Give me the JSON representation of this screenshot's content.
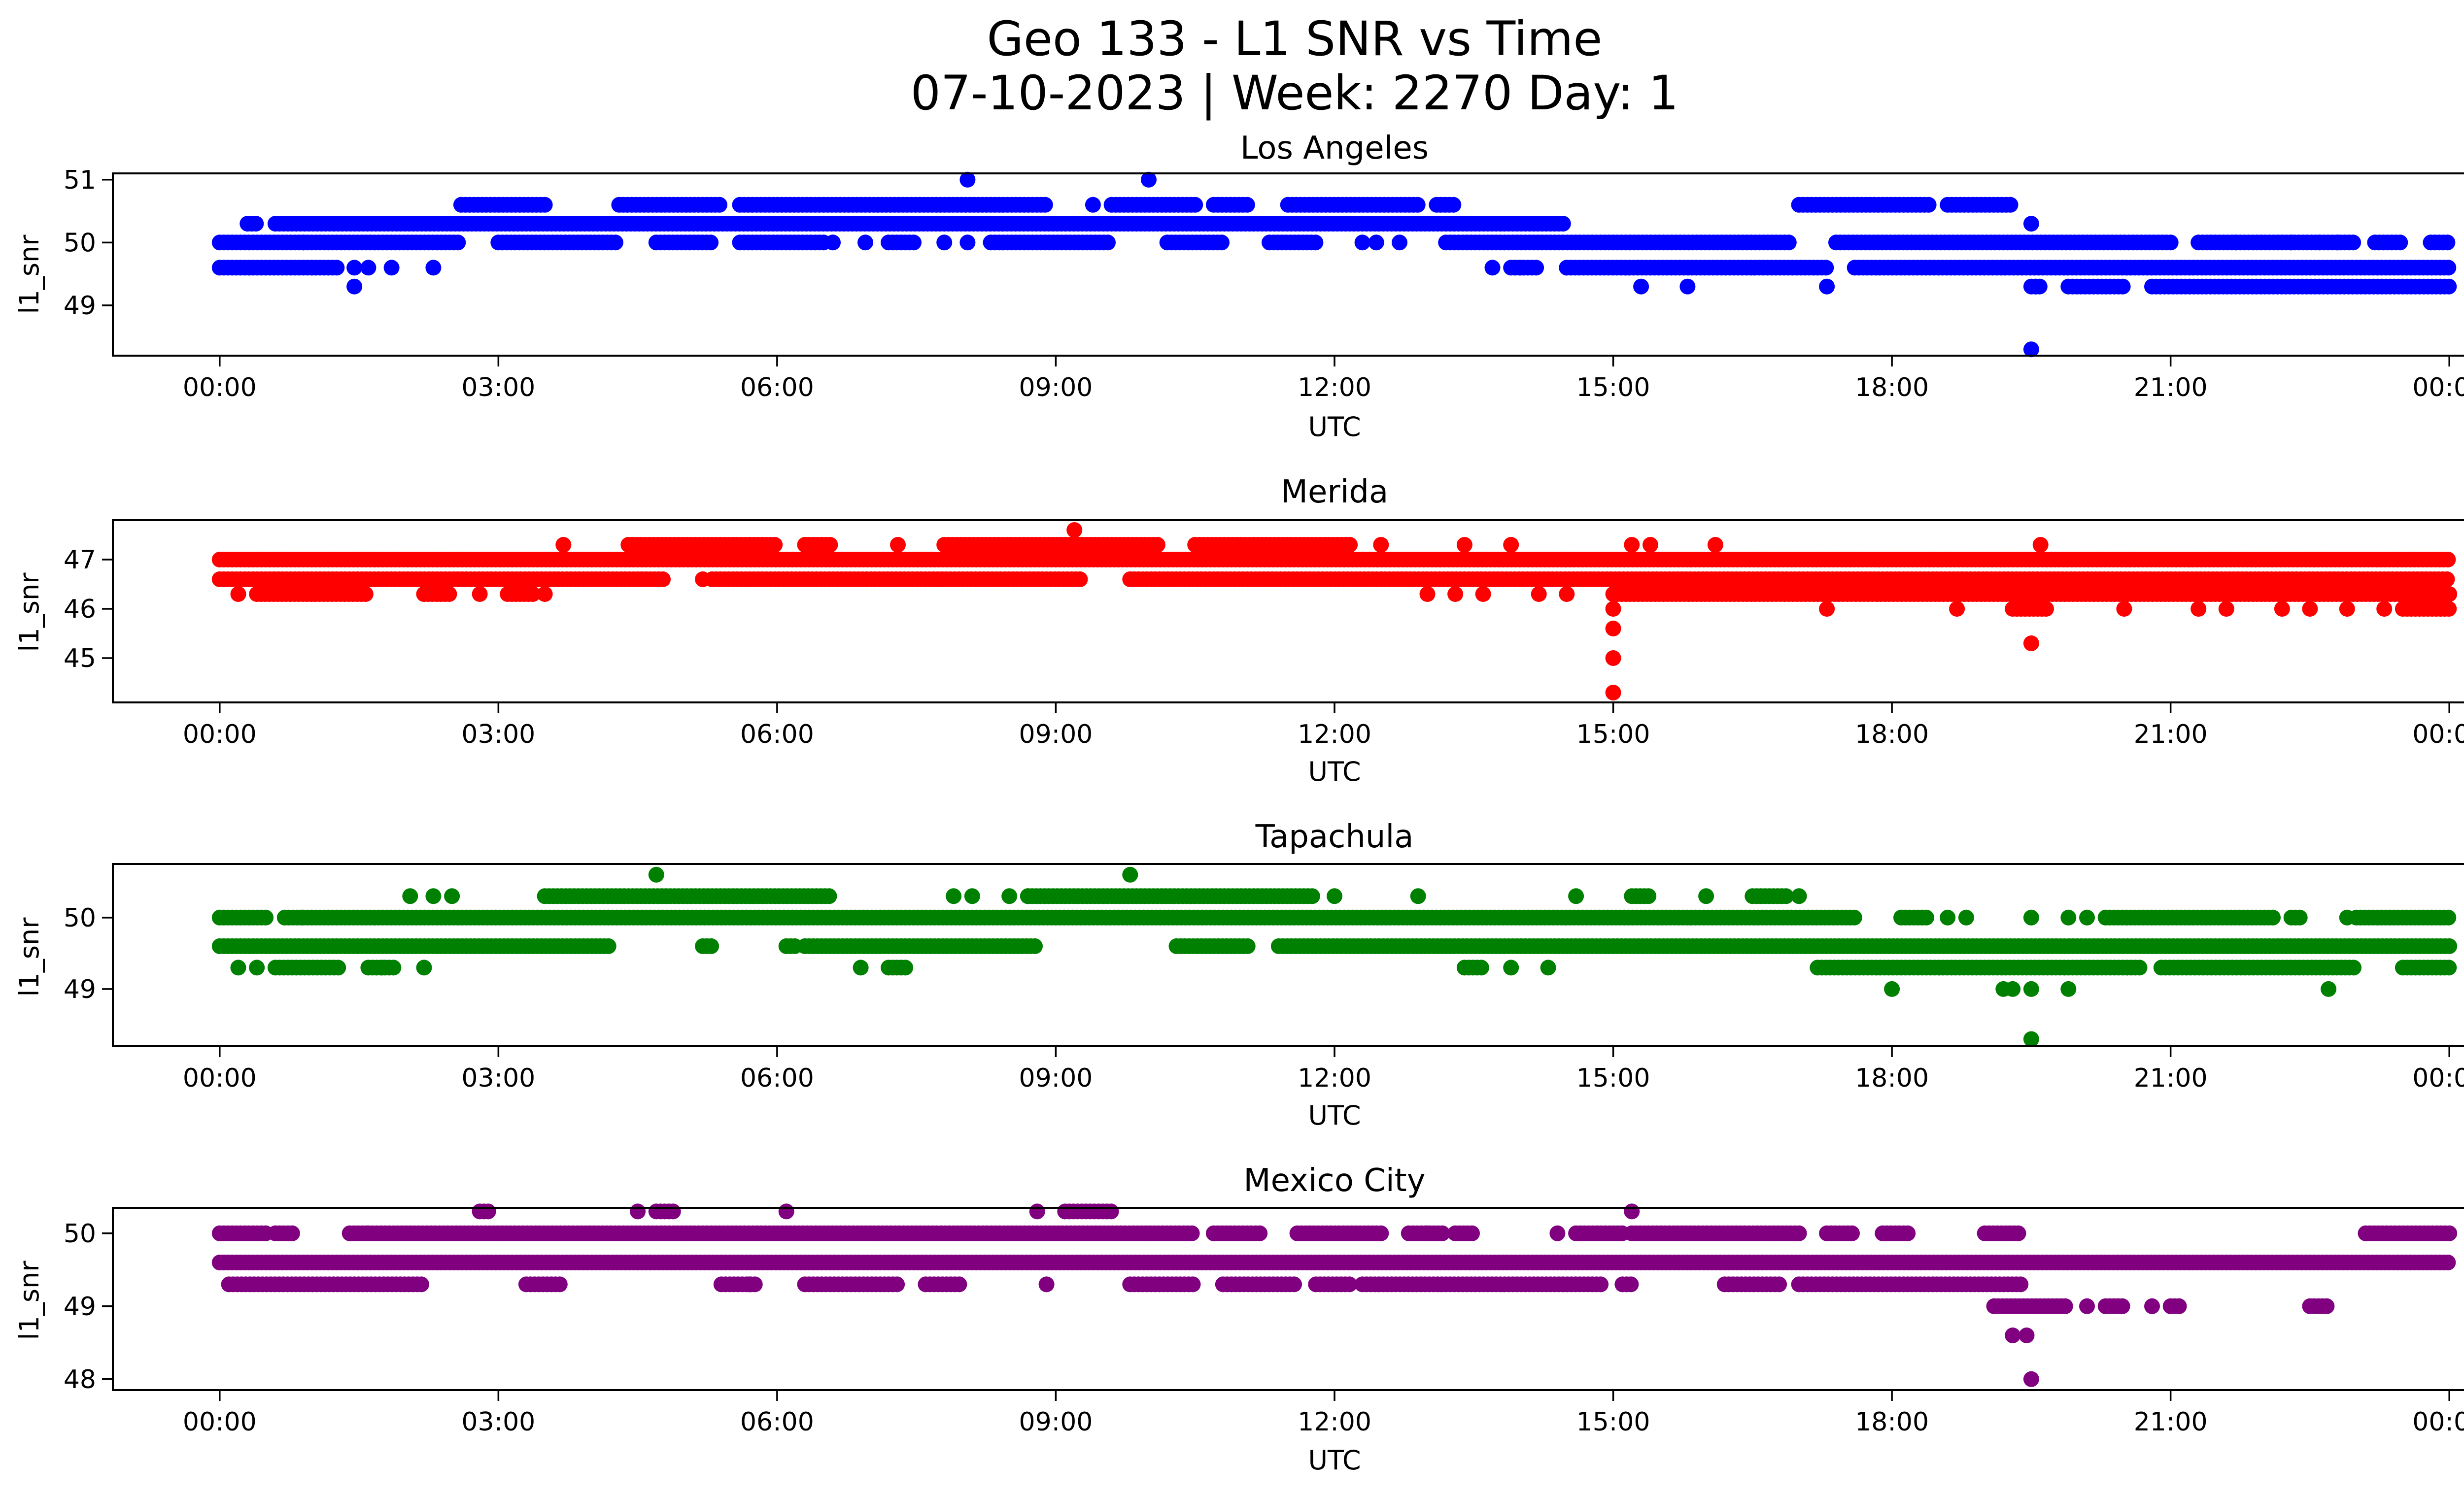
{
  "figure": {
    "title_line1": "Geo 133 - L1 SNR vs Time",
    "title_line2": "07-10-2023 | Week: 2270 Day: 1"
  },
  "chart_data": [
    {
      "type": "scatter",
      "title": "Los Angeles",
      "xlabel": "UTC",
      "ylabel": "l1_snr",
      "color": "#0000ff",
      "xlim_hours": [
        -1.15,
        25.15
      ],
      "ylim": [
        48.2,
        51.1
      ],
      "x_ticks": [
        "00:00",
        "03:00",
        "06:00",
        "09:00",
        "12:00",
        "15:00",
        "18:00",
        "21:00",
        "00:00"
      ],
      "y_ticks": [
        49,
        50,
        51
      ],
      "segments": [
        {
          "y": 50.0,
          "ranges": [
            [
              0.0,
              0.9
            ],
            [
              0.9,
              2.6
            ],
            [
              3.0,
              4.3
            ],
            [
              4.7,
              5.3
            ],
            [
              5.6,
              6.5
            ],
            [
              7.2,
              7.5
            ],
            [
              8.3,
              9.6
            ],
            [
              10.2,
              10.8
            ],
            [
              11.3,
              11.8
            ],
            [
              13.2,
              16.9
            ],
            [
              17.4,
              21.0
            ],
            [
              21.3,
              23.0
            ],
            [
              23.2,
              23.5
            ],
            [
              23.8,
              24.0
            ]
          ]
        },
        {
          "y": 49.6,
          "ranges": [
            [
              0.0,
              1.3
            ],
            [
              13.9,
              14.2
            ],
            [
              14.5,
              17.3
            ],
            [
              17.6,
              24.0
            ]
          ]
        },
        {
          "y": 50.3,
          "ranges": [
            [
              0.3,
              0.4
            ],
            [
              0.6,
              14.5
            ]
          ]
        },
        {
          "y": 50.6,
          "ranges": [
            [
              2.6,
              3.5
            ],
            [
              4.3,
              5.4
            ],
            [
              5.6,
              8.9
            ],
            [
              9.6,
              10.5
            ],
            [
              10.7,
              11.1
            ],
            [
              11.5,
              12.9
            ],
            [
              13.1,
              13.3
            ],
            [
              17.0,
              18.4
            ],
            [
              18.6,
              19.3
            ]
          ]
        },
        {
          "y": 49.3,
          "ranges": [
            [
              19.5,
              19.6
            ],
            [
              19.9,
              20.5
            ],
            [
              20.8,
              24.0
            ]
          ]
        }
      ],
      "points": [
        {
          "x": 1.45,
          "y": 49.3
        },
        {
          "x": 1.45,
          "y": 49.6
        },
        {
          "x": 1.6,
          "y": 49.6
        },
        {
          "x": 1.85,
          "y": 49.6
        },
        {
          "x": 2.3,
          "y": 49.6
        },
        {
          "x": 8.05,
          "y": 51.0
        },
        {
          "x": 10.0,
          "y": 51.0
        },
        {
          "x": 9.4,
          "y": 50.6
        },
        {
          "x": 6.6,
          "y": 50.0
        },
        {
          "x": 6.95,
          "y": 50.0
        },
        {
          "x": 7.8,
          "y": 50.0
        },
        {
          "x": 8.05,
          "y": 50.0
        },
        {
          "x": 12.3,
          "y": 50.0
        },
        {
          "x": 12.45,
          "y": 50.0
        },
        {
          "x": 12.7,
          "y": 50.0
        },
        {
          "x": 13.7,
          "y": 49.6
        },
        {
          "x": 14.0,
          "y": 49.6
        },
        {
          "x": 15.3,
          "y": 49.3
        },
        {
          "x": 15.8,
          "y": 49.3
        },
        {
          "x": 17.3,
          "y": 49.3
        },
        {
          "x": 19.5,
          "y": 50.3
        },
        {
          "x": 19.5,
          "y": 48.3
        },
        {
          "x": 19.55,
          "y": 49.3
        },
        {
          "x": 21.7,
          "y": 50.0
        },
        {
          "x": 22.3,
          "y": 50.0
        },
        {
          "x": 22.6,
          "y": 50.0
        },
        {
          "x": 22.8,
          "y": 50.0
        }
      ]
    },
    {
      "type": "scatter",
      "title": "Merida",
      "xlabel": "UTC",
      "ylabel": "l1_snr",
      "color": "#ff0000",
      "xlim_hours": [
        -1.15,
        25.15
      ],
      "ylim": [
        44.1,
        47.8
      ],
      "x_ticks": [
        "00:00",
        "03:00",
        "06:00",
        "09:00",
        "12:00",
        "15:00",
        "18:00",
        "21:00",
        "00:00"
      ],
      "y_ticks": [
        45,
        46,
        47
      ],
      "segments": [
        {
          "y": 47.0,
          "ranges": [
            [
              0.0,
              24.0
            ]
          ]
        },
        {
          "y": 46.6,
          "ranges": [
            [
              0.0,
              4.8
            ],
            [
              5.3,
              9.3
            ],
            [
              9.8,
              24.0
            ]
          ]
        },
        {
          "y": 46.3,
          "ranges": [
            [
              0.4,
              1.6
            ],
            [
              2.2,
              2.5
            ],
            [
              3.1,
              3.4
            ],
            [
              15.0,
              24.0
            ]
          ]
        },
        {
          "y": 47.3,
          "ranges": [
            [
              4.4,
              6.0
            ],
            [
              6.3,
              6.6
            ],
            [
              7.8,
              10.1
            ],
            [
              10.5,
              12.2
            ]
          ]
        },
        {
          "y": 46.0,
          "ranges": [
            [
              19.3,
              19.7
            ],
            [
              23.5,
              24.0
            ]
          ]
        }
      ],
      "points": [
        {
          "x": 0.2,
          "y": 46.3
        },
        {
          "x": 2.2,
          "y": 46.3
        },
        {
          "x": 2.8,
          "y": 46.3
        },
        {
          "x": 3.5,
          "y": 46.3
        },
        {
          "x": 3.7,
          "y": 47.3
        },
        {
          "x": 5.2,
          "y": 46.6
        },
        {
          "x": 7.3,
          "y": 47.3
        },
        {
          "x": 9.2,
          "y": 47.6
        },
        {
          "x": 12.5,
          "y": 47.3
        },
        {
          "x": 13.0,
          "y": 46.3
        },
        {
          "x": 13.3,
          "y": 46.3
        },
        {
          "x": 13.6,
          "y": 46.3
        },
        {
          "x": 13.4,
          "y": 47.3
        },
        {
          "x": 13.9,
          "y": 47.3
        },
        {
          "x": 14.2,
          "y": 46.3
        },
        {
          "x": 14.5,
          "y": 46.3
        },
        {
          "x": 15.0,
          "y": 46.0
        },
        {
          "x": 15.0,
          "y": 45.6
        },
        {
          "x": 15.0,
          "y": 45.0
        },
        {
          "x": 15.0,
          "y": 44.3
        },
        {
          "x": 15.2,
          "y": 47.3
        },
        {
          "x": 15.4,
          "y": 47.3
        },
        {
          "x": 16.1,
          "y": 47.3
        },
        {
          "x": 17.3,
          "y": 46.0
        },
        {
          "x": 18.7,
          "y": 46.0
        },
        {
          "x": 19.5,
          "y": 45.3
        },
        {
          "x": 19.6,
          "y": 47.3
        },
        {
          "x": 20.5,
          "y": 46.0
        },
        {
          "x": 21.3,
          "y": 46.0
        },
        {
          "x": 21.6,
          "y": 46.0
        },
        {
          "x": 22.2,
          "y": 46.0
        },
        {
          "x": 22.5,
          "y": 46.0
        },
        {
          "x": 22.9,
          "y": 46.0
        },
        {
          "x": 23.3,
          "y": 46.0
        }
      ]
    },
    {
      "type": "scatter",
      "title": "Tapachula",
      "xlabel": "UTC",
      "ylabel": "l1_snr",
      "color": "#008000",
      "xlim_hours": [
        -1.15,
        25.15
      ],
      "ylim": [
        48.2,
        50.75
      ],
      "x_ticks": [
        "00:00",
        "03:00",
        "06:00",
        "09:00",
        "12:00",
        "15:00",
        "18:00",
        "21:00",
        "00:00"
      ],
      "y_ticks": [
        49,
        50
      ],
      "segments": [
        {
          "y": 50.0,
          "ranges": [
            [
              0.0,
              0.5
            ],
            [
              0.7,
              0.9
            ],
            [
              0.9,
              17.6
            ],
            [
              18.1,
              18.4
            ],
            [
              20.3,
              22.1
            ],
            [
              22.3,
              22.4
            ],
            [
              23.0,
              24.0
            ]
          ]
        },
        {
          "y": 49.6,
          "ranges": [
            [
              0.0,
              4.2
            ],
            [
              5.2,
              5.3
            ],
            [
              6.1,
              6.2
            ],
            [
              6.3,
              8.8
            ],
            [
              10.3,
              11.1
            ],
            [
              11.4,
              24.0
            ]
          ]
        },
        {
          "y": 49.3,
          "ranges": [
            [
              0.6,
              1.3
            ],
            [
              1.6,
              1.9
            ],
            [
              7.2,
              7.4
            ],
            [
              13.4,
              13.6
            ],
            [
              17.2,
              20.7
            ],
            [
              20.9,
              23.0
            ],
            [
              23.5,
              24.0
            ]
          ]
        },
        {
          "y": 50.3,
          "ranges": [
            [
              3.5,
              6.6
            ],
            [
              8.7,
              11.8
            ],
            [
              16.5,
              16.9
            ],
            [
              15.2,
              15.4
            ]
          ]
        }
      ],
      "points": [
        {
          "x": 0.2,
          "y": 49.3
        },
        {
          "x": 0.4,
          "y": 49.3
        },
        {
          "x": 2.05,
          "y": 50.3
        },
        {
          "x": 2.3,
          "y": 50.3
        },
        {
          "x": 2.5,
          "y": 50.3
        },
        {
          "x": 1.75,
          "y": 49.3
        },
        {
          "x": 2.2,
          "y": 49.3
        },
        {
          "x": 4.7,
          "y": 50.6
        },
        {
          "x": 6.9,
          "y": 49.3
        },
        {
          "x": 7.9,
          "y": 50.3
        },
        {
          "x": 8.1,
          "y": 50.3
        },
        {
          "x": 8.5,
          "y": 50.3
        },
        {
          "x": 8.7,
          "y": 50.3
        },
        {
          "x": 9.8,
          "y": 50.6
        },
        {
          "x": 12.0,
          "y": 50.3
        },
        {
          "x": 12.9,
          "y": 50.3
        },
        {
          "x": 13.9,
          "y": 49.3
        },
        {
          "x": 14.3,
          "y": 49.3
        },
        {
          "x": 14.6,
          "y": 50.3
        },
        {
          "x": 16.0,
          "y": 50.3
        },
        {
          "x": 17.0,
          "y": 50.3
        },
        {
          "x": 18.0,
          "y": 49.0
        },
        {
          "x": 18.6,
          "y": 50.0
        },
        {
          "x": 18.8,
          "y": 50.0
        },
        {
          "x": 19.2,
          "y": 49.0
        },
        {
          "x": 19.3,
          "y": 49.0
        },
        {
          "x": 19.5,
          "y": 49.0
        },
        {
          "x": 19.5,
          "y": 48.3
        },
        {
          "x": 19.9,
          "y": 49.0
        },
        {
          "x": 19.5,
          "y": 50.0
        },
        {
          "x": 19.9,
          "y": 50.0
        },
        {
          "x": 20.1,
          "y": 50.0
        },
        {
          "x": 22.7,
          "y": 49.0
        },
        {
          "x": 22.9,
          "y": 50.0
        }
      ]
    },
    {
      "type": "scatter",
      "title": "Mexico City",
      "xlabel": "UTC",
      "ylabel": "l1_snr",
      "color": "#800080",
      "xlim_hours": [
        -1.15,
        25.15
      ],
      "ylim": [
        47.85,
        50.35
      ],
      "x_ticks": [
        "00:00",
        "03:00",
        "06:00",
        "09:00",
        "12:00",
        "15:00",
        "18:00",
        "21:00",
        "00:00"
      ],
      "y_ticks": [
        48,
        49,
        50
      ],
      "segments": [
        {
          "y": 49.6,
          "ranges": [
            [
              0.0,
              24.0
            ]
          ]
        },
        {
          "y": 50.0,
          "ranges": [
            [
              0.0,
              0.5
            ],
            [
              0.6,
              0.8
            ],
            [
              1.4,
              1.6
            ],
            [
              1.6,
              10.5
            ],
            [
              10.7,
              11.2
            ],
            [
              11.6,
              12.5
            ],
            [
              12.8,
              13.2
            ],
            [
              13.3,
              13.5
            ],
            [
              14.6,
              15.1
            ],
            [
              15.2,
              17.0
            ],
            [
              17.3,
              17.6
            ],
            [
              17.9,
              18.2
            ],
            [
              19.0,
              19.4
            ],
            [
              23.1,
              24.0
            ]
          ]
        },
        {
          "y": 49.3,
          "ranges": [
            [
              0.1,
              2.2
            ],
            [
              3.3,
              3.7
            ],
            [
              5.4,
              5.8
            ],
            [
              6.3,
              7.3
            ],
            [
              7.6,
              8.0
            ],
            [
              9.8,
              10.5
            ],
            [
              10.8,
              11.6
            ],
            [
              11.8,
              12.2
            ],
            [
              12.3,
              14.9
            ],
            [
              15.1,
              15.2
            ],
            [
              16.2,
              16.8
            ],
            [
              17.0,
              19.4
            ]
          ]
        },
        {
          "y": 49.0,
          "ranges": [
            [
              19.1,
              19.9
            ],
            [
              20.3,
              20.5
            ],
            [
              21.0,
              21.1
            ],
            [
              22.5,
              22.7
            ]
          ]
        },
        {
          "y": 50.3,
          "ranges": [
            [
              2.8,
              2.9
            ],
            [
              4.7,
              4.9
            ],
            [
              9.1,
              9.6
            ]
          ]
        }
      ],
      "points": [
        {
          "x": 4.5,
          "y": 50.3
        },
        {
          "x": 6.1,
          "y": 50.3
        },
        {
          "x": 8.8,
          "y": 50.3
        },
        {
          "x": 15.2,
          "y": 50.3
        },
        {
          "x": 5.7,
          "y": 49.3
        },
        {
          "x": 8.9,
          "y": 49.3
        },
        {
          "x": 13.0,
          "y": 50.0
        },
        {
          "x": 14.4,
          "y": 50.0
        },
        {
          "x": 19.3,
          "y": 48.6
        },
        {
          "x": 19.45,
          "y": 48.6
        },
        {
          "x": 19.5,
          "y": 48.0
        },
        {
          "x": 20.1,
          "y": 49.0
        },
        {
          "x": 20.8,
          "y": 49.0
        }
      ]
    }
  ]
}
